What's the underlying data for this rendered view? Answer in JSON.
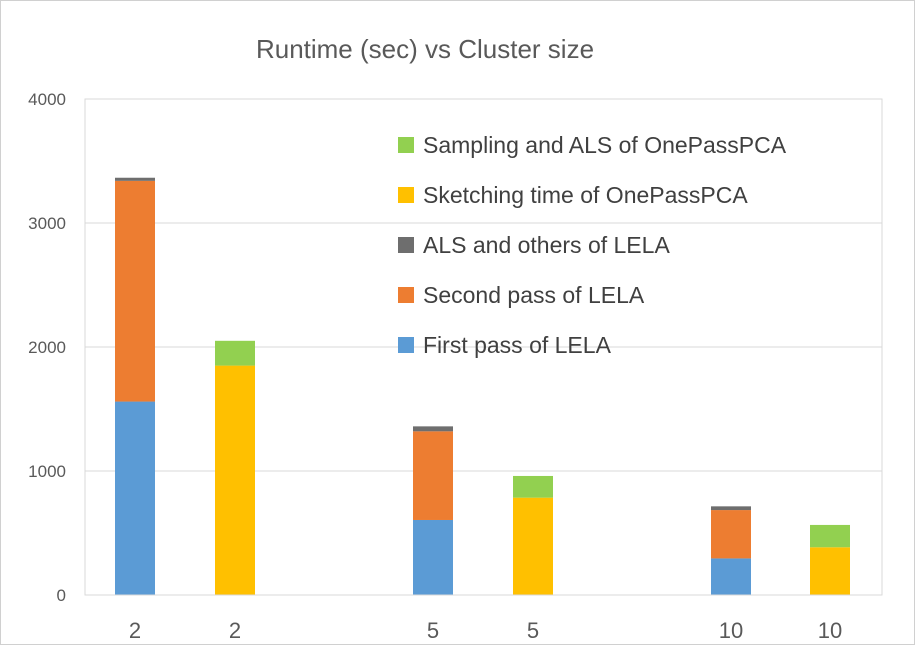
{
  "chart_data": {
    "type": "bar",
    "stacked": true,
    "title": "Runtime (sec) vs Cluster size",
    "categories": [
      "2",
      "2",
      "5",
      "5",
      "10",
      "10"
    ],
    "ylim": [
      0,
      4000
    ],
    "yticks": [
      "0",
      "1000",
      "2000",
      "3000",
      "4000"
    ],
    "grid": true,
    "legend_position": "top-right, inside plot",
    "series": [
      {
        "name": "First pass of LELA",
        "color": "#5b9bd5",
        "values": [
          1560,
          0,
          605,
          0,
          295,
          0
        ]
      },
      {
        "name": "Second pass of LELA",
        "color": "#ed7d31",
        "values": [
          1780,
          0,
          715,
          0,
          390,
          0
        ]
      },
      {
        "name": "ALS and others of LELA",
        "color": "#6e6e6e",
        "values": [
          25,
          0,
          40,
          0,
          30,
          0
        ]
      },
      {
        "name": "Sketching time of OnePassPCA",
        "color": "#ffc000",
        "values": [
          0,
          1850,
          0,
          785,
          0,
          385
        ]
      },
      {
        "name": "Sampling and ALS of OnePassPCA",
        "color": "#92d050",
        "values": [
          0,
          200,
          0,
          175,
          0,
          180
        ]
      }
    ],
    "legend_order": [
      "Sampling and ALS of OnePassPCA",
      "Sketching time of OnePassPCA",
      "ALS and others of LELA",
      "Second pass of LELA",
      "First pass of LELA"
    ]
  }
}
